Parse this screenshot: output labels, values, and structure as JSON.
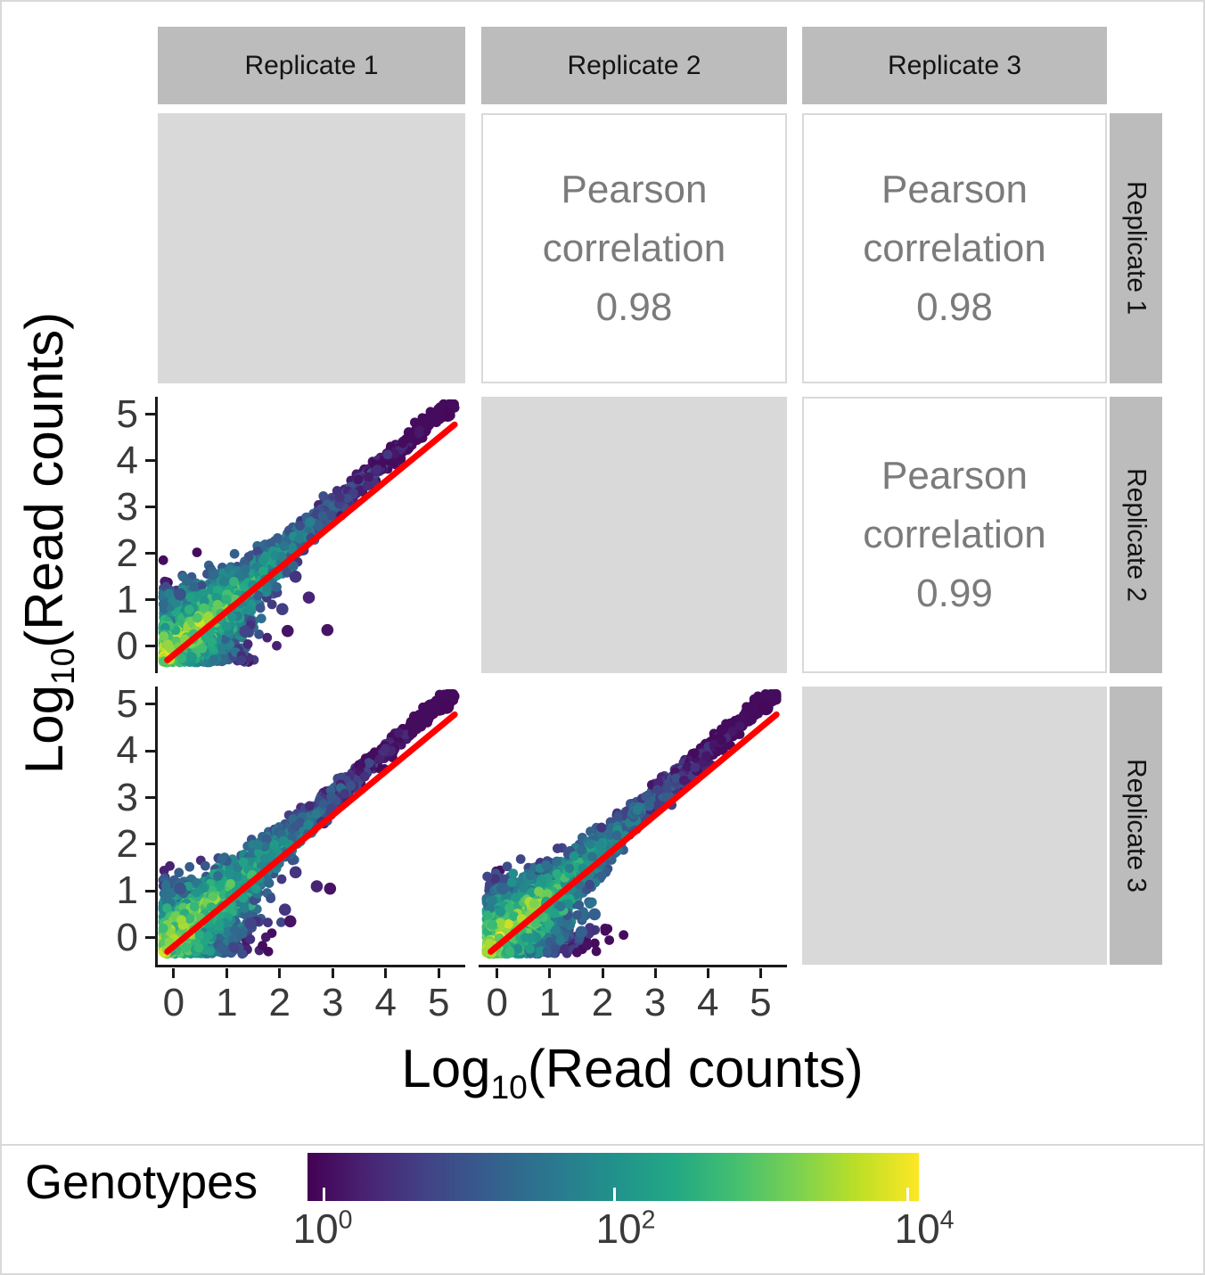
{
  "figure": {
    "background": "#ffffff",
    "border_color": "#d9d9d9"
  },
  "chart_data": {
    "type": "scatter",
    "subtype": "pairs-matrix",
    "variables": [
      "Replicate 1",
      "Replicate 2",
      "Replicate 3"
    ],
    "axis": {
      "x_label": {
        "prefix": "Log",
        "sub": "10",
        "suffix": "(Read counts)"
      },
      "y_label": {
        "prefix": "Log",
        "sub": "10",
        "suffix": "(Read counts)"
      },
      "ticks": [
        0,
        1,
        2,
        3,
        4,
        5
      ],
      "x_range": [
        -0.3,
        5.5
      ],
      "y_range": [
        -0.58,
        5.38
      ]
    },
    "upper_panels": [
      {
        "x_var": "Replicate 2",
        "y_var": "Replicate 1",
        "line1": "Pearson",
        "line2": "correlation",
        "value": "0.98",
        "pearson": 0.98
      },
      {
        "x_var": "Replicate 3",
        "y_var": "Replicate 1",
        "line1": "Pearson",
        "line2": "correlation",
        "value": "0.98",
        "pearson": 0.98
      },
      {
        "x_var": "Replicate 3",
        "y_var": "Replicate 2",
        "line1": "Pearson",
        "line2": "correlation",
        "value": "0.99",
        "pearson": 0.99
      }
    ],
    "scatter_panels": [
      {
        "id": "p21",
        "x_var": "Replicate 1",
        "y_var": "Replicate 2",
        "pearson": 0.98,
        "seed": 7,
        "n_points": 3000,
        "spread": 0.5,
        "x_stretch": 1.15,
        "outliers": [
          [
            2.15,
            0.33,
            0.05
          ],
          [
            2.9,
            0.35,
            0.05
          ],
          [
            2.55,
            1.05,
            0.1
          ],
          [
            2.3,
            1.5,
            0.15
          ],
          [
            2.05,
            0.8,
            0.18
          ],
          [
            0.12,
            1.12,
            0.25
          ],
          [
            1.35,
            0.32,
            0.2
          ]
        ],
        "max_point": [
          5.17,
          5.0
        ]
      },
      {
        "id": "p31",
        "x_var": "Replicate 1",
        "y_var": "Replicate 3",
        "pearson": 0.98,
        "seed": 13,
        "n_points": 3000,
        "spread": 0.5,
        "x_stretch": 1.15,
        "outliers": [
          [
            2.2,
            0.35,
            0.05
          ],
          [
            2.95,
            1.05,
            0.05
          ],
          [
            2.7,
            1.1,
            0.1
          ],
          [
            2.3,
            1.4,
            0.15
          ],
          [
            1.45,
            0.3,
            0.2
          ],
          [
            0.12,
            1.05,
            0.25
          ],
          [
            2.1,
            0.6,
            0.15
          ]
        ],
        "max_point": [
          5.15,
          4.95
        ]
      },
      {
        "id": "p32",
        "x_var": "Replicate 2",
        "y_var": "Replicate 3",
        "pearson": 0.99,
        "seed": 21,
        "n_points": 3000,
        "spread": 0.42,
        "x_stretch": 1.45,
        "outliers": [
          [
            1.6,
            0.12,
            0.3
          ],
          [
            0.1,
            1.05,
            0.32
          ],
          [
            1.85,
            0.5,
            0.3
          ]
        ],
        "max_point": [
          5.1,
          4.92
        ]
      }
    ],
    "fit_line": {
      "color": "#ff0000",
      "width": 7,
      "x1": -0.12,
      "y1": -0.3,
      "x2": 5.3,
      "y2": 4.78
    },
    "colormap": {
      "name": "viridis",
      "stops": [
        "#440154",
        "#482475",
        "#414487",
        "#355f8d",
        "#2a788e",
        "#21918c",
        "#22a884",
        "#44bf70",
        "#7ad151",
        "#bddf26",
        "#fde725"
      ]
    },
    "legend": {
      "title": "Genotypes",
      "scale": "log10",
      "tick_labels": [
        {
          "base": "10",
          "exp": "0"
        },
        {
          "base": "10",
          "exp": "2"
        },
        {
          "base": "10",
          "exp": "4"
        }
      ]
    }
  },
  "colors": {
    "strip_bg": "#bcbcbc",
    "strip_text": "#141414",
    "diag_bg": "#d9d9d9",
    "corr_border": "#d9d9d9",
    "corr_text": "#7b7b7b",
    "tick_text": "#3a3a3a",
    "axis_line": "#1a1a1a",
    "fit_line": "#ff0000"
  }
}
